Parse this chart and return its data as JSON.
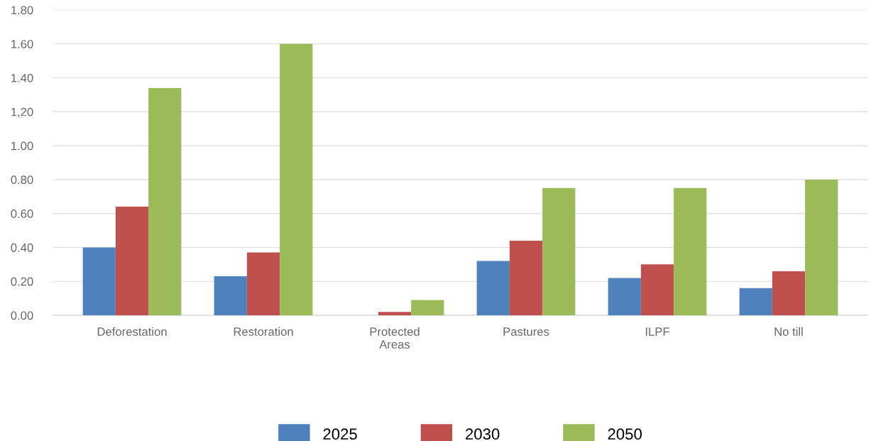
{
  "chart_data": {
    "type": "bar",
    "categories": [
      "Deforestation",
      "Restoration",
      "Protected\nAreas",
      "Pastures",
      "ILPF",
      "No till"
    ],
    "series": [
      {
        "name": "2025",
        "color": "#4f81bd",
        "values": [
          0.4,
          0.23,
          0,
          0.32,
          0.22,
          0.16
        ]
      },
      {
        "name": "2030",
        "color": "#c0504d",
        "values": [
          0.64,
          0.37,
          0.02,
          0.44,
          0.3,
          0.26
        ]
      },
      {
        "name": "2050",
        "color": "#9bbb59",
        "values": [
          1.34,
          1.6,
          0.09,
          0.75,
          0.75,
          0.8
        ]
      }
    ],
    "ylim": [
      0,
      1.8
    ],
    "yticks": [
      {
        "value": 0,
        "label": "0.00"
      },
      {
        "value": 0.2,
        "label": "0.20"
      },
      {
        "value": 0.4,
        "label": "0.40"
      },
      {
        "value": 0.6,
        "label": "0.60"
      },
      {
        "value": 0.8,
        "label": "0.80"
      },
      {
        "value": 1.0,
        "label": "1.00"
      },
      {
        "value": 1.2,
        "label": "1,20"
      },
      {
        "value": 1.4,
        "label": "1.40"
      },
      {
        "value": 1.6,
        "label": "1.60"
      },
      {
        "value": 1.8,
        "label": "1.80"
      }
    ],
    "grid": "y",
    "legend": "bottom"
  }
}
